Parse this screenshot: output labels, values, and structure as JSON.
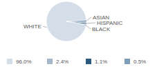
{
  "chart_data": {
    "type": "pie",
    "categories": [
      "WHITE",
      "ASIAN",
      "HISPANIC",
      "BLACK"
    ],
    "values": [
      96.0,
      2.4,
      1.1,
      0.5
    ],
    "value_labels": [
      "96.0%",
      "2.4%",
      "1.1%",
      "0.5%"
    ],
    "colors": [
      "#d3dee8",
      "#a4b8cb",
      "#2a5a7e",
      "#7f9cb8"
    ]
  }
}
